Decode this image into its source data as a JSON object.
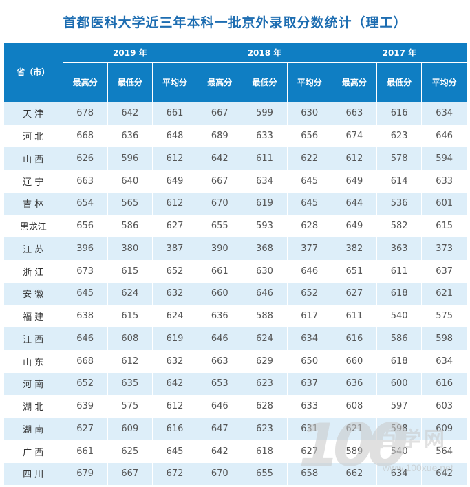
{
  "title": "首都医科大学近三年本科一批京外录取分数统计（理工）",
  "header": {
    "province_label": "省（市）",
    "years": [
      "2019 年",
      "2018 年",
      "2017 年"
    ],
    "sub_columns": [
      "最高分",
      "最低分",
      "平均分"
    ]
  },
  "rows": [
    {
      "province": "天 津",
      "scores": [
        678,
        642,
        661,
        667,
        599,
        630,
        663,
        616,
        634
      ]
    },
    {
      "province": "河 北",
      "scores": [
        668,
        636,
        648,
        689,
        633,
        656,
        674,
        623,
        646
      ]
    },
    {
      "province": "山 西",
      "scores": [
        626,
        596,
        612,
        642,
        611,
        622,
        612,
        578,
        594
      ]
    },
    {
      "province": "辽 宁",
      "scores": [
        663,
        640,
        649,
        667,
        634,
        645,
        649,
        614,
        633
      ]
    },
    {
      "province": "吉 林",
      "scores": [
        654,
        565,
        612,
        670,
        619,
        645,
        644,
        536,
        601
      ]
    },
    {
      "province": "黑龙江",
      "scores": [
        656,
        586,
        627,
        655,
        593,
        628,
        649,
        582,
        615
      ]
    },
    {
      "province": "江 苏",
      "scores": [
        396,
        380,
        387,
        390,
        368,
        377,
        382,
        363,
        373
      ]
    },
    {
      "province": "浙 江",
      "scores": [
        673,
        615,
        652,
        661,
        630,
        646,
        651,
        611,
        637
      ]
    },
    {
      "province": "安 徽",
      "scores": [
        645,
        624,
        632,
        660,
        646,
        652,
        627,
        618,
        621
      ]
    },
    {
      "province": "福 建",
      "scores": [
        638,
        615,
        624,
        636,
        588,
        617,
        611,
        540,
        575
      ]
    },
    {
      "province": "江 西",
      "scores": [
        646,
        608,
        619,
        646,
        624,
        634,
        616,
        586,
        598
      ]
    },
    {
      "province": "山 东",
      "scores": [
        668,
        612,
        632,
        663,
        629,
        650,
        660,
        618,
        634
      ]
    },
    {
      "province": "河 南",
      "scores": [
        652,
        635,
        642,
        653,
        623,
        637,
        636,
        600,
        616
      ]
    },
    {
      "province": "湖 北",
      "scores": [
        639,
        575,
        612,
        646,
        628,
        633,
        608,
        597,
        603
      ]
    },
    {
      "province": "湖 南",
      "scores": [
        627,
        609,
        616,
        647,
        623,
        631,
        621,
        598,
        609
      ]
    },
    {
      "province": "广 西",
      "scores": [
        661,
        625,
        645,
        642,
        618,
        627,
        589,
        540,
        564
      ]
    },
    {
      "province": "四 川",
      "scores": [
        679,
        667,
        672,
        670,
        655,
        658,
        662,
        634,
        642
      ]
    }
  ],
  "watermark": {
    "number": "100",
    "brand": "百学网",
    "url": "www.100xue.net"
  },
  "colors": {
    "title": "#1d6db1",
    "header_bg": "#0f7ec3",
    "stripe": "#ddeef9"
  }
}
